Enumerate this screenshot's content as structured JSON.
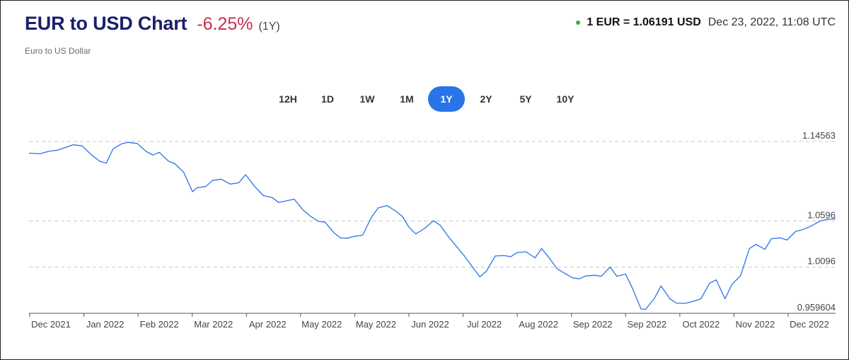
{
  "header": {
    "title": "EUR to USD Chart",
    "change": "-6.25%",
    "period": "(1Y)",
    "subtitle": "Euro to US Dollar",
    "rate": "1 EUR = 1.06191 USD",
    "timestamp": "Dec 23, 2022, 11:08 UTC",
    "colors": {
      "title": "#1a1f6b",
      "change": "#c4314b",
      "live_dot": "#2fb24a",
      "accent": "#2a74e8"
    }
  },
  "tabs": [
    {
      "label": "12H",
      "active": false
    },
    {
      "label": "1D",
      "active": false
    },
    {
      "label": "1W",
      "active": false
    },
    {
      "label": "1M",
      "active": false
    },
    {
      "label": "1Y",
      "active": true
    },
    {
      "label": "2Y",
      "active": false
    },
    {
      "label": "5Y",
      "active": false
    },
    {
      "label": "10Y",
      "active": false
    }
  ],
  "chart_data": {
    "type": "line",
    "line_color": "#2a74e8",
    "grid": "dashed horizontal",
    "ylim": [
      0.959604,
      1.14563
    ],
    "y_ticks": [
      {
        "label": "1.14563",
        "value": 1.14563
      },
      {
        "label": "1.0596",
        "value": 1.0596
      },
      {
        "label": "1.0096",
        "value": 1.0096
      },
      {
        "label": "0.959604",
        "value": 0.959604
      }
    ],
    "x_ticks": [
      "Dec 2021",
      "Jan 2022",
      "Feb 2022",
      "Mar 2022",
      "Apr 2022",
      "May 2022",
      "May 2022",
      "Jun 2022",
      "Jul 2022",
      "Aug 2022",
      "Sep 2022",
      "Sep 2022",
      "Oct 2022",
      "Nov 2022",
      "Dec 2022"
    ],
    "series": [
      {
        "x": [
          "2021-12-23",
          "2021-12-28",
          "2022-01-01",
          "2022-01-05",
          "2022-01-09",
          "2022-01-12",
          "2022-01-16",
          "2022-01-20",
          "2022-01-24",
          "2022-01-27",
          "2022-01-30",
          "2022-02-03",
          "2022-02-06",
          "2022-02-10",
          "2022-02-14",
          "2022-02-17",
          "2022-02-20",
          "2022-02-24",
          "2022-02-27",
          "2022-03-03",
          "2022-03-07",
          "2022-03-09",
          "2022-03-13",
          "2022-03-16",
          "2022-03-20",
          "2022-03-24",
          "2022-03-28",
          "2022-03-31",
          "2022-04-04",
          "2022-04-08",
          "2022-04-12",
          "2022-04-15",
          "2022-04-19",
          "2022-04-22",
          "2022-04-26",
          "2022-04-29",
          "2022-05-03",
          "2022-05-06",
          "2022-05-10",
          "2022-05-13",
          "2022-05-16",
          "2022-05-19",
          "2022-05-23",
          "2022-05-27",
          "2022-05-30",
          "2022-06-03",
          "2022-06-07",
          "2022-06-10",
          "2022-06-13",
          "2022-06-16",
          "2022-06-20",
          "2022-06-24",
          "2022-06-27",
          "2022-07-01",
          "2022-07-05",
          "2022-07-08",
          "2022-07-12",
          "2022-07-15",
          "2022-07-18",
          "2022-07-22",
          "2022-07-26",
          "2022-07-29",
          "2022-08-01",
          "2022-08-05",
          "2022-08-09",
          "2022-08-12",
          "2022-08-16",
          "2022-08-19",
          "2022-08-23",
          "2022-08-26",
          "2022-08-29",
          "2022-09-01",
          "2022-09-05",
          "2022-09-08",
          "2022-09-12",
          "2022-09-15",
          "2022-09-19",
          "2022-09-22",
          "2022-09-26",
          "2022-09-28",
          "2022-10-02",
          "2022-10-05",
          "2022-10-09",
          "2022-10-12",
          "2022-10-16",
          "2022-10-19",
          "2022-10-23",
          "2022-10-27",
          "2022-10-30",
          "2022-11-03",
          "2022-11-06",
          "2022-11-10",
          "2022-11-14",
          "2022-11-17",
          "2022-11-21",
          "2022-11-24",
          "2022-11-28",
          "2022-12-01",
          "2022-12-05",
          "2022-12-08",
          "2022-12-12",
          "2022-12-16",
          "2022-12-19",
          "2022-12-23"
        ],
        "y": [
          1.1329,
          1.1323,
          1.135,
          1.1362,
          1.1395,
          1.1421,
          1.1409,
          1.1316,
          1.1243,
          1.1221,
          1.1375,
          1.1432,
          1.1446,
          1.1435,
          1.1349,
          1.1309,
          1.1339,
          1.1245,
          1.1215,
          1.1123,
          1.0912,
          1.0955,
          1.0969,
          1.1033,
          1.1048,
          1.0995,
          1.1009,
          1.1097,
          1.0972,
          1.0871,
          1.085,
          1.0796,
          1.0816,
          1.0832,
          1.0715,
          1.0653,
          1.0591,
          1.0582,
          1.0468,
          1.0412,
          1.0409,
          1.0428,
          1.0442,
          1.0637,
          1.0737,
          1.0763,
          1.0702,
          1.0644,
          1.0527,
          1.0456,
          1.0515,
          1.0598,
          1.0551,
          1.042,
          1.0305,
          1.0218,
          1.0087,
          0.999,
          1.0052,
          1.0217,
          1.0221,
          1.0209,
          1.0255,
          1.0261,
          1.0196,
          1.0297,
          1.0176,
          1.0078,
          1.0022,
          0.998,
          0.997,
          1.0,
          1.0008,
          0.9997,
          1.0097,
          0.9998,
          1.002,
          0.987,
          0.9641,
          0.9639,
          0.9756,
          0.9893,
          0.9754,
          0.9706,
          0.9704,
          0.9722,
          0.9752,
          0.9922,
          0.9958,
          0.9754,
          0.9905,
          1.0003,
          1.0296,
          1.0343,
          1.0288,
          1.0404,
          1.0413,
          1.0389,
          1.0483,
          1.0502,
          1.0541,
          1.0594,
          1.0612,
          1.0619
        ]
      }
    ]
  }
}
